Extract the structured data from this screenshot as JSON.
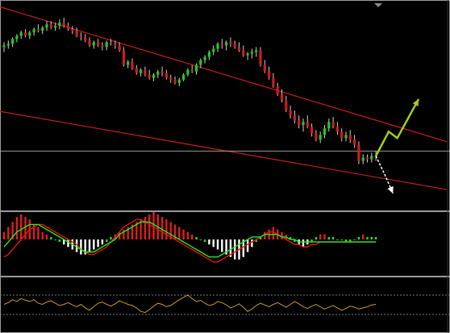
{
  "colors": {
    "background": "#000000",
    "frame": "#9a9a9a",
    "channel": "#c81e1e",
    "bull": "#1ecc1e",
    "bear": "#d41a1a",
    "wick": "#cfcfcf",
    "forecast_up": "#a6cc1a",
    "forecast_down": "#ffffff",
    "hist_pos": "#dd1f1f",
    "hist_neg": "#ffffff",
    "hist_mid": "#22dd22",
    "signal_red": "#ee1111",
    "signal_green": "#22ee22",
    "oscillator": "#c89a28",
    "level_dots": "#777777"
  },
  "chart_data": [
    {
      "type": "candlestick",
      "panel": "price",
      "candles": [
        [
          100,
          103,
          97,
          101
        ],
        [
          101,
          104,
          99,
          102
        ],
        [
          102,
          106,
          100,
          105
        ],
        [
          105,
          108,
          103,
          107
        ],
        [
          107,
          110,
          105,
          109
        ],
        [
          109,
          111,
          106,
          107
        ],
        [
          107,
          110,
          105,
          109
        ],
        [
          109,
          112,
          107,
          111
        ],
        [
          111,
          114,
          109,
          110
        ],
        [
          110,
          113,
          108,
          112
        ],
        [
          112,
          116,
          110,
          114
        ],
        [
          114,
          116,
          111,
          112
        ],
        [
          112,
          115,
          110,
          113
        ],
        [
          113,
          117,
          111,
          115
        ],
        [
          115,
          118,
          112,
          113
        ],
        [
          113,
          115,
          110,
          111
        ],
        [
          111,
          113,
          108,
          110
        ],
        [
          110,
          112,
          106,
          107
        ],
        [
          107,
          109,
          104,
          106
        ],
        [
          106,
          108,
          103,
          104
        ],
        [
          104,
          106,
          100,
          101
        ],
        [
          101,
          104,
          99,
          103
        ],
        [
          103,
          105,
          100,
          101
        ],
        [
          101,
          103,
          98,
          100
        ],
        [
          100,
          104,
          98,
          103
        ],
        [
          103,
          105,
          101,
          102
        ],
        [
          102,
          104,
          99,
          101
        ],
        [
          101,
          103,
          97,
          98
        ],
        [
          98,
          100,
          88,
          89
        ],
        [
          89,
          92,
          87,
          91
        ],
        [
          91,
          93,
          86,
          87
        ],
        [
          87,
          89,
          83,
          84
        ],
        [
          84,
          87,
          82,
          86
        ],
        [
          86,
          88,
          82,
          83
        ],
        [
          83,
          86,
          80,
          81
        ],
        [
          81,
          84,
          79,
          83
        ],
        [
          83,
          86,
          81,
          85
        ],
        [
          85,
          88,
          82,
          84
        ],
        [
          84,
          86,
          80,
          81
        ],
        [
          81,
          83,
          78,
          80
        ],
        [
          80,
          82,
          77,
          78
        ],
        [
          78,
          81,
          76,
          80
        ],
        [
          80,
          84,
          79,
          83
        ],
        [
          83,
          87,
          82,
          86
        ],
        [
          86,
          89,
          84,
          85
        ],
        [
          85,
          90,
          83,
          89
        ],
        [
          89,
          93,
          87,
          92
        ],
        [
          92,
          95,
          90,
          94
        ],
        [
          94,
          98,
          92,
          97
        ],
        [
          97,
          101,
          95,
          99
        ],
        [
          99,
          103,
          97,
          102
        ],
        [
          102,
          105,
          99,
          101
        ],
        [
          101,
          104,
          98,
          103
        ],
        [
          103,
          106,
          100,
          102
        ],
        [
          102,
          104,
          99,
          100
        ],
        [
          100,
          103,
          97,
          98
        ],
        [
          98,
          101,
          94,
          95
        ],
        [
          95,
          97,
          92,
          96
        ],
        [
          96,
          99,
          93,
          97
        ],
        [
          97,
          100,
          94,
          98
        ],
        [
          98,
          100,
          88,
          89
        ],
        [
          89,
          92,
          84,
          85
        ],
        [
          85,
          88,
          80,
          81
        ],
        [
          81,
          84,
          75,
          76
        ],
        [
          76,
          78,
          70,
          71
        ],
        [
          71,
          74,
          66,
          67
        ],
        [
          67,
          70,
          60,
          61
        ],
        [
          61,
          64,
          56,
          58
        ],
        [
          58,
          61,
          53,
          55
        ],
        [
          55,
          58,
          50,
          52
        ],
        [
          52,
          56,
          48,
          54
        ],
        [
          54,
          58,
          50,
          51
        ],
        [
          51,
          53,
          45,
          47
        ],
        [
          47,
          49,
          42,
          43
        ],
        [
          43,
          48,
          41,
          46
        ],
        [
          46,
          52,
          44,
          50
        ],
        [
          50,
          56,
          48,
          54
        ],
        [
          54,
          57,
          50,
          51
        ],
        [
          51,
          54,
          46,
          48
        ],
        [
          48,
          50,
          42,
          44
        ],
        [
          44,
          48,
          42,
          46
        ],
        [
          46,
          49,
          41,
          43
        ],
        [
          43,
          46,
          38,
          40
        ],
        [
          40,
          42,
          28,
          30
        ],
        [
          30,
          34,
          28,
          32
        ],
        [
          32,
          34,
          29,
          31
        ],
        [
          31,
          35,
          29,
          33
        ],
        [
          33,
          36,
          30,
          32
        ]
      ],
      "channel_upper": {
        "from": [
          0,
          124
        ],
        "to": [
          87,
          55
        ]
      },
      "channel_lower": {
        "from": [
          0,
          60
        ],
        "to": [
          87,
          20
        ]
      },
      "horizontal_level": 36,
      "forecast": [
        {
          "direction": "up",
          "points": [
            [
              87,
              33
            ],
            [
              90,
              48
            ],
            [
              92,
              44
            ],
            [
              97,
              68
            ]
          ]
        },
        {
          "direction": "down",
          "points": [
            [
              87,
              33
            ],
            [
              89,
              22
            ],
            [
              91,
              10
            ]
          ]
        }
      ]
    },
    {
      "type": "histogram_with_signals",
      "panel": "macd",
      "histogram": [
        3,
        5,
        7,
        9,
        10,
        9,
        8,
        6,
        5,
        3,
        2,
        1,
        0,
        -1,
        -2,
        -3,
        -4,
        -5,
        -6,
        -6,
        -5,
        -4,
        -3,
        -2,
        -1,
        1,
        2,
        3,
        4,
        5,
        6,
        7,
        8,
        9,
        10,
        11,
        10,
        9,
        8,
        7,
        6,
        5,
        4,
        3,
        2,
        1,
        0,
        -1,
        -2,
        -3,
        -4,
        -5,
        -6,
        -7,
        -8,
        -8,
        -7,
        -5,
        -3,
        -1,
        1,
        3,
        4,
        5,
        4,
        3,
        2,
        1,
        -1,
        -2,
        -3,
        -2,
        -1,
        1,
        2,
        2,
        1,
        1,
        0,
        0,
        -1,
        -1,
        0,
        1,
        2,
        1,
        1,
        1
      ],
      "signal_red": [
        -7,
        -6,
        -4,
        -2,
        0,
        2,
        4,
        5,
        6,
        6,
        5,
        4,
        3,
        2,
        1,
        0,
        -1,
        -2,
        -4,
        -5,
        -6,
        -6,
        -5,
        -4,
        -3,
        -1,
        1,
        3,
        5,
        6,
        7,
        8,
        8,
        7,
        6,
        5,
        4,
        3,
        2,
        1,
        0,
        -1,
        -2,
        -3,
        -4,
        -5,
        -6,
        -7,
        -8,
        -9,
        -9,
        -8,
        -7,
        -6,
        -5,
        -4,
        -3,
        -2,
        -1,
        0,
        1,
        2,
        3,
        3,
        2,
        1,
        0,
        -1,
        -2,
        -2,
        -3,
        -3,
        -2,
        -2,
        -1,
        -1,
        -1,
        -1,
        -1,
        -1,
        -1,
        -1,
        -1,
        -1,
        -1,
        -1,
        -1,
        -1
      ],
      "signal_green": [
        -3,
        -1,
        1,
        3,
        4,
        5,
        6,
        6,
        6,
        5,
        4,
        3,
        2,
        1,
        0,
        -1,
        -2,
        -3,
        -4,
        -5,
        -5,
        -5,
        -4,
        -3,
        -2,
        -1,
        0,
        2,
        3,
        4,
        5,
        6,
        7,
        7,
        7,
        6,
        5,
        4,
        3,
        2,
        1,
        0,
        -1,
        -2,
        -3,
        -4,
        -5,
        -6,
        -7,
        -7,
        -7,
        -6,
        -5,
        -4,
        -3,
        -2,
        -1,
        0,
        1,
        1,
        1,
        2,
        2,
        2,
        2,
        1,
        1,
        0,
        0,
        -1,
        -1,
        -1,
        -1,
        -1,
        -1,
        -1,
        -1,
        -1,
        -1,
        -1,
        -1,
        -1,
        -1,
        -1,
        -1,
        -1,
        -1,
        -1
      ]
    },
    {
      "type": "line",
      "panel": "oscillator",
      "values": [
        50,
        53,
        58,
        55,
        60,
        57,
        55,
        58,
        52,
        50,
        54,
        56,
        52,
        48,
        50,
        53,
        49,
        46,
        50,
        44,
        40,
        46,
        52,
        54,
        50,
        47,
        51,
        56,
        53,
        50,
        48,
        44,
        38,
        36,
        41,
        47,
        52,
        50,
        46,
        48,
        53,
        58,
        62,
        66,
        60,
        55,
        57,
        52,
        48,
        50,
        55,
        53,
        49,
        44,
        47,
        51,
        45,
        38,
        42,
        48,
        52,
        49,
        46,
        50,
        53,
        49,
        45,
        50,
        55,
        51,
        46,
        43,
        47,
        50,
        46,
        42,
        45,
        48,
        44,
        40,
        43,
        47,
        45,
        42,
        44,
        46,
        49,
        50
      ]
    }
  ]
}
